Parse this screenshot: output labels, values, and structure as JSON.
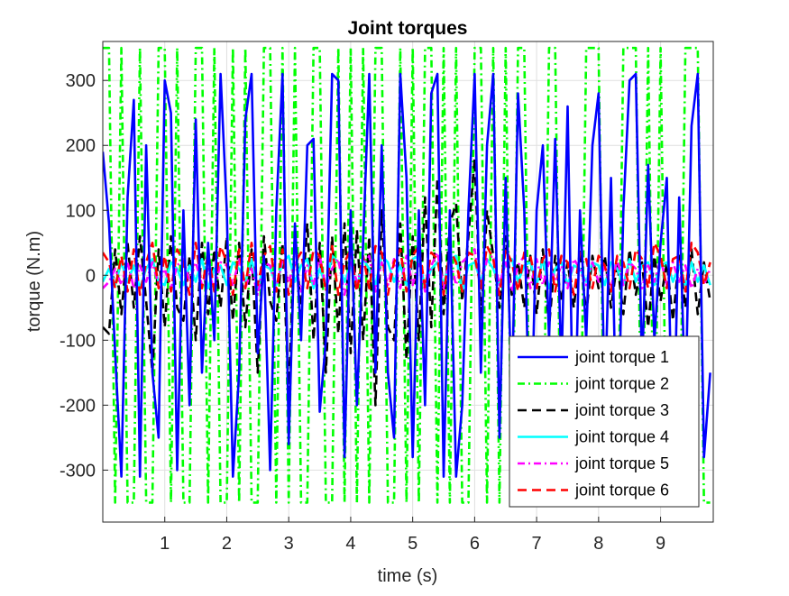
{
  "chart_data": {
    "type": "line",
    "title": "Joint torques",
    "xlabel": "time (s)",
    "ylabel": "torque (N.m)",
    "xlim": [
      0,
      9.85
    ],
    "ylim": [
      -380,
      360
    ],
    "xticks": [
      "1",
      "2",
      "3",
      "4",
      "5",
      "6",
      "7",
      "8",
      "9"
    ],
    "yticks": [
      "-300",
      "-200",
      "-100",
      "0",
      "100",
      "200",
      "300"
    ],
    "grid": true,
    "legend_location": "bottom-right",
    "series": [
      {
        "name": "joint torque 1",
        "color": "#0000ff",
        "dash": "solid",
        "x": [
          0.0,
          0.1,
          0.2,
          0.3,
          0.4,
          0.5,
          0.6,
          0.7,
          0.8,
          0.9,
          1.0,
          1.1,
          1.2,
          1.3,
          1.4,
          1.5,
          1.6,
          1.7,
          1.8,
          1.9,
          2.0,
          2.1,
          2.2,
          2.3,
          2.4,
          2.5,
          2.6,
          2.7,
          2.8,
          2.9,
          3.0,
          3.1,
          3.2,
          3.3,
          3.4,
          3.5,
          3.6,
          3.7,
          3.8,
          3.9,
          4.0,
          4.1,
          4.2,
          4.3,
          4.4,
          4.5,
          4.6,
          4.7,
          4.8,
          4.9,
          5.0,
          5.1,
          5.2,
          5.3,
          5.4,
          5.5,
          5.6,
          5.7,
          5.8,
          5.9,
          6.0,
          6.1,
          6.2,
          6.3,
          6.4,
          6.5,
          6.6,
          6.7,
          6.8,
          6.9,
          7.0,
          7.1,
          7.2,
          7.3,
          7.4,
          7.5,
          7.6,
          7.7,
          7.8,
          7.9,
          8.0,
          8.1,
          8.2,
          8.3,
          8.4,
          8.5,
          8.6,
          8.7,
          8.8,
          8.9,
          9.0,
          9.1,
          9.2,
          9.3,
          9.4,
          9.5,
          9.6,
          9.7,
          9.8
        ],
        "values": [
          190,
          80,
          -120,
          -310,
          120,
          270,
          -310,
          200,
          -150,
          -250,
          300,
          250,
          -300,
          100,
          -200,
          240,
          -150,
          50,
          -100,
          310,
          100,
          -310,
          -150,
          240,
          310,
          -120,
          30,
          -300,
          100,
          310,
          -260,
          80,
          -100,
          200,
          210,
          -210,
          -100,
          310,
          300,
          -280,
          100,
          -200,
          50,
          310,
          -150,
          200,
          -150,
          -250,
          310,
          150,
          -280,
          100,
          -200,
          280,
          310,
          -310,
          100,
          -310,
          -200,
          100,
          310,
          -150,
          200,
          310,
          -250,
          150,
          -200,
          280,
          100,
          -300,
          100,
          200,
          -100,
          210,
          -150,
          260,
          -310,
          100,
          -100,
          200,
          280,
          -200,
          150,
          -300,
          100,
          300,
          310,
          -150,
          170,
          -100,
          50,
          150,
          -310,
          120,
          -200,
          230,
          310,
          -280,
          -150
        ]
      },
      {
        "name": "joint torque 2",
        "color": "#00ff00",
        "dash": "8,4,2,4",
        "x": [
          0.0,
          0.1,
          0.2,
          0.3,
          0.4,
          0.5,
          0.6,
          0.7,
          0.8,
          0.9,
          1.0,
          1.1,
          1.2,
          1.3,
          1.4,
          1.5,
          1.6,
          1.7,
          1.8,
          1.9,
          2.0,
          2.1,
          2.2,
          2.3,
          2.4,
          2.5,
          2.6,
          2.7,
          2.8,
          2.9,
          3.0,
          3.1,
          3.2,
          3.3,
          3.4,
          3.5,
          3.6,
          3.7,
          3.8,
          3.9,
          4.0,
          4.1,
          4.2,
          4.3,
          4.4,
          4.5,
          4.6,
          4.7,
          4.8,
          4.9,
          5.0,
          5.1,
          5.2,
          5.3,
          5.4,
          5.5,
          5.6,
          5.7,
          5.8,
          5.9,
          6.0,
          6.1,
          6.2,
          6.3,
          6.4,
          6.5,
          6.6,
          6.7,
          6.8,
          6.9,
          7.0,
          7.1,
          7.2,
          7.3,
          7.4,
          7.5,
          7.6,
          7.7,
          7.8,
          7.9,
          8.0,
          8.1,
          8.2,
          8.3,
          8.4,
          8.5,
          8.6,
          8.7,
          8.8,
          8.9,
          9.0,
          9.1,
          9.2,
          9.3,
          9.4,
          9.5,
          9.6,
          9.7,
          9.8
        ],
        "values": [
          350,
          350,
          -350,
          350,
          -350,
          -350,
          350,
          -350,
          -350,
          350,
          350,
          -350,
          350,
          -350,
          -350,
          350,
          350,
          -350,
          350,
          -350,
          -350,
          350,
          -350,
          350,
          -350,
          -350,
          350,
          350,
          -350,
          350,
          -350,
          350,
          -350,
          -350,
          350,
          350,
          -350,
          -350,
          350,
          -350,
          350,
          -350,
          350,
          -350,
          350,
          350,
          -350,
          -350,
          350,
          -350,
          350,
          -350,
          350,
          350,
          -350,
          350,
          -350,
          350,
          -350,
          -350,
          350,
          350,
          -350,
          350,
          -350,
          350,
          -350,
          350,
          350,
          -350,
          -350,
          -350,
          350,
          350,
          -350,
          -350,
          -350,
          -350,
          350,
          350,
          350,
          -350,
          -350,
          -350,
          350,
          350,
          350,
          -350,
          350,
          -350,
          350,
          -350,
          -350,
          -350,
          350,
          350,
          350,
          -350,
          -350
        ]
      },
      {
        "name": "joint torque 3",
        "color": "#000000",
        "dash": "10,6",
        "x": [
          0.0,
          0.1,
          0.2,
          0.3,
          0.4,
          0.5,
          0.6,
          0.7,
          0.8,
          0.9,
          1.0,
          1.1,
          1.2,
          1.3,
          1.4,
          1.5,
          1.6,
          1.7,
          1.8,
          1.9,
          2.0,
          2.1,
          2.2,
          2.3,
          2.4,
          2.5,
          2.6,
          2.7,
          2.8,
          2.9,
          3.0,
          3.1,
          3.2,
          3.3,
          3.4,
          3.5,
          3.6,
          3.7,
          3.8,
          3.9,
          4.0,
          4.1,
          4.2,
          4.3,
          4.4,
          4.5,
          4.6,
          4.7,
          4.8,
          4.9,
          5.0,
          5.1,
          5.2,
          5.3,
          5.4,
          5.5,
          5.6,
          5.7,
          5.8,
          5.9,
          6.0,
          6.1,
          6.2,
          6.3,
          6.4,
          6.5,
          6.6,
          6.7,
          6.8,
          6.9,
          7.0,
          7.1,
          7.2,
          7.3,
          7.4,
          7.5,
          7.6,
          7.7,
          7.8,
          7.9,
          8.0,
          8.1,
          8.2,
          8.3,
          8.4,
          8.5,
          8.6,
          8.7,
          8.8,
          8.9,
          9.0,
          9.1,
          9.2,
          9.3,
          9.4,
          9.5,
          9.6,
          9.7,
          9.8
        ],
        "values": [
          -80,
          -90,
          40,
          -60,
          50,
          -50,
          60,
          -40,
          -150,
          40,
          -80,
          60,
          -50,
          -70,
          30,
          -100,
          50,
          -60,
          40,
          -50,
          60,
          -70,
          50,
          -80,
          40,
          -150,
          60,
          -40,
          -70,
          50,
          -180,
          70,
          -60,
          80,
          -100,
          50,
          -150,
          60,
          -90,
          80,
          -120,
          70,
          -100,
          60,
          -200,
          100,
          -80,
          -100,
          80,
          -130,
          60,
          -100,
          120,
          -80,
          150,
          -60,
          80,
          110,
          -40,
          60,
          180,
          -70,
          100,
          30,
          -50,
          60,
          -30,
          20,
          -50,
          30,
          -60,
          40,
          -80,
          30,
          -40,
          20,
          -50,
          40,
          -60,
          30,
          -20,
          30,
          -50,
          20,
          -60,
          40,
          -30,
          20,
          -80,
          30,
          -40,
          20,
          -70,
          30,
          -50,
          40,
          -60,
          20,
          -40
        ]
      },
      {
        "name": "joint torque 4",
        "color": "#00ffff",
        "dash": "solid",
        "x": [
          0.0,
          0.1,
          0.2,
          0.3,
          0.4,
          0.5,
          0.6,
          0.7,
          0.8,
          0.9,
          1.0,
          1.1,
          1.2,
          1.3,
          1.4,
          1.5,
          1.6,
          1.7,
          1.8,
          1.9,
          2.0,
          2.1,
          2.2,
          2.3,
          2.4,
          2.5,
          2.6,
          2.7,
          2.8,
          2.9,
          3.0,
          3.1,
          3.2,
          3.3,
          3.4,
          3.5,
          3.6,
          3.7,
          3.8,
          3.9,
          4.0,
          4.1,
          4.2,
          4.3,
          4.4,
          4.5,
          4.6,
          4.7,
          4.8,
          4.9,
          5.0,
          5.1,
          5.2,
          5.3,
          5.4,
          5.5,
          5.6,
          5.7,
          5.8,
          5.9,
          6.0,
          6.1,
          6.2,
          6.3,
          6.4,
          6.5,
          6.6,
          6.7,
          6.8,
          6.9,
          7.0,
          7.1,
          7.2,
          7.3,
          7.4,
          7.5,
          7.6,
          7.7,
          7.8,
          7.9,
          8.0,
          8.1,
          8.2,
          8.3,
          8.4,
          8.5,
          8.6,
          8.7,
          8.8,
          8.9,
          9.0,
          9.1,
          9.2,
          9.3,
          9.4,
          9.5,
          9.6,
          9.7,
          9.8
        ],
        "values": [
          -10,
          10,
          -15,
          20,
          -10,
          15,
          -20,
          10,
          25,
          -10,
          -15,
          20,
          10,
          -15,
          15,
          -10,
          25,
          -20,
          10,
          15,
          -15,
          20,
          10,
          -10,
          25,
          -20,
          15,
          10,
          -15,
          20,
          30,
          -10,
          15,
          25,
          -20,
          10,
          -15,
          30,
          20,
          -10,
          15,
          -20,
          25,
          10,
          -15,
          30,
          20,
          -10,
          15,
          -15,
          25,
          30,
          -20,
          10,
          20,
          -15,
          25,
          30,
          -25,
          15,
          20,
          -10,
          25,
          10,
          -15,
          20,
          25,
          -10,
          15,
          20,
          -15,
          25,
          -20,
          10,
          20,
          -15,
          15,
          10,
          -10,
          20,
          15,
          -15,
          20,
          10,
          -15,
          25,
          -10,
          15,
          20,
          -15,
          15,
          20,
          -10,
          15,
          -15,
          20,
          -10,
          15,
          -15
        ]
      },
      {
        "name": "joint torque 5",
        "color": "#ff00ff",
        "dash": "8,4,2,4",
        "x": [
          0.0,
          0.1,
          0.2,
          0.3,
          0.4,
          0.5,
          0.6,
          0.7,
          0.8,
          0.9,
          1.0,
          1.1,
          1.2,
          1.3,
          1.4,
          1.5,
          1.6,
          1.7,
          1.8,
          1.9,
          2.0,
          2.1,
          2.2,
          2.3,
          2.4,
          2.5,
          2.6,
          2.7,
          2.8,
          2.9,
          3.0,
          3.1,
          3.2,
          3.3,
          3.4,
          3.5,
          3.6,
          3.7,
          3.8,
          3.9,
          4.0,
          4.1,
          4.2,
          4.3,
          4.4,
          4.5,
          4.6,
          4.7,
          4.8,
          4.9,
          5.0,
          5.1,
          5.2,
          5.3,
          5.4,
          5.5,
          5.6,
          5.7,
          5.8,
          5.9,
          6.0,
          6.1,
          6.2,
          6.3,
          6.4,
          6.5,
          6.6,
          6.7,
          6.8,
          6.9,
          7.0,
          7.1,
          7.2,
          7.3,
          7.4,
          7.5,
          7.6,
          7.7,
          7.8,
          7.9,
          8.0,
          8.1,
          8.2,
          8.3,
          8.4,
          8.5,
          8.6,
          8.7,
          8.8,
          8.9,
          9.0,
          9.1,
          9.2,
          9.3,
          9.4,
          9.5,
          9.6,
          9.7,
          9.8
        ],
        "values": [
          -20,
          -10,
          10,
          -15,
          20,
          -20,
          15,
          -10,
          20,
          -15,
          10,
          -20,
          15,
          25,
          -10,
          20,
          -15,
          10,
          -25,
          20,
          15,
          -15,
          25,
          -20,
          10,
          -30,
          20,
          15,
          -20,
          25,
          -10,
          20,
          -25,
          15,
          -15,
          30,
          -20,
          10,
          25,
          -30,
          20,
          -10,
          15,
          30,
          -25,
          20,
          -15,
          25,
          -20,
          30,
          -15,
          20,
          -25,
          15,
          35,
          -20,
          25,
          -15,
          20,
          30,
          40,
          -20,
          25,
          30,
          -15,
          20,
          -25,
          15,
          30,
          -20,
          25,
          -15,
          20,
          -10,
          15,
          -20,
          25,
          10,
          -15,
          20,
          -10,
          15,
          -20,
          25,
          -15,
          20,
          10,
          -20,
          15,
          -10,
          25,
          -15,
          20,
          -10,
          15,
          -20,
          10,
          -15,
          10
        ]
      },
      {
        "name": "joint torque 6",
        "color": "#ff0000",
        "dash": "10,6",
        "x": [
          0.0,
          0.1,
          0.2,
          0.3,
          0.4,
          0.5,
          0.6,
          0.7,
          0.8,
          0.9,
          1.0,
          1.1,
          1.2,
          1.3,
          1.4,
          1.5,
          1.6,
          1.7,
          1.8,
          1.9,
          2.0,
          2.1,
          2.2,
          2.3,
          2.4,
          2.5,
          2.6,
          2.7,
          2.8,
          2.9,
          3.0,
          3.1,
          3.2,
          3.3,
          3.4,
          3.5,
          3.6,
          3.7,
          3.8,
          3.9,
          4.0,
          4.1,
          4.2,
          4.3,
          4.4,
          4.5,
          4.6,
          4.7,
          4.8,
          4.9,
          5.0,
          5.1,
          5.2,
          5.3,
          5.4,
          5.5,
          5.6,
          5.7,
          5.8,
          5.9,
          6.0,
          6.1,
          6.2,
          6.3,
          6.4,
          6.5,
          6.6,
          6.7,
          6.8,
          6.9,
          7.0,
          7.1,
          7.2,
          7.3,
          7.4,
          7.5,
          7.6,
          7.7,
          7.8,
          7.9,
          8.0,
          8.1,
          8.2,
          8.3,
          8.4,
          8.5,
          8.6,
          8.7,
          8.8,
          8.9,
          9.0,
          9.1,
          9.2,
          9.3,
          9.4,
          9.5,
          9.6,
          9.7,
          9.8
        ],
        "values": [
          35,
          20,
          -20,
          30,
          -25,
          40,
          -30,
          20,
          50,
          -20,
          30,
          -25,
          40,
          20,
          -30,
          50,
          -20,
          35,
          -25,
          45,
          20,
          -30,
          40,
          -20,
          50,
          -15,
          30,
          45,
          -25,
          40,
          -30,
          20,
          35,
          -20,
          40,
          30,
          -25,
          45,
          -30,
          20,
          40,
          -25,
          30,
          -20,
          45,
          35,
          -30,
          20,
          40,
          -25,
          30,
          45,
          -20,
          35,
          25,
          -30,
          40,
          20,
          -25,
          35,
          30,
          -20,
          45,
          25,
          -30,
          40,
          20,
          -25,
          35,
          30,
          -20,
          25,
          40,
          -25,
          30,
          20,
          -30,
          35,
          25,
          -20,
          30,
          15,
          -25,
          30,
          20,
          -20,
          40,
          25,
          -20,
          50,
          30,
          -20,
          25,
          30,
          -25,
          50,
          35,
          -15,
          20
        ]
      }
    ]
  }
}
